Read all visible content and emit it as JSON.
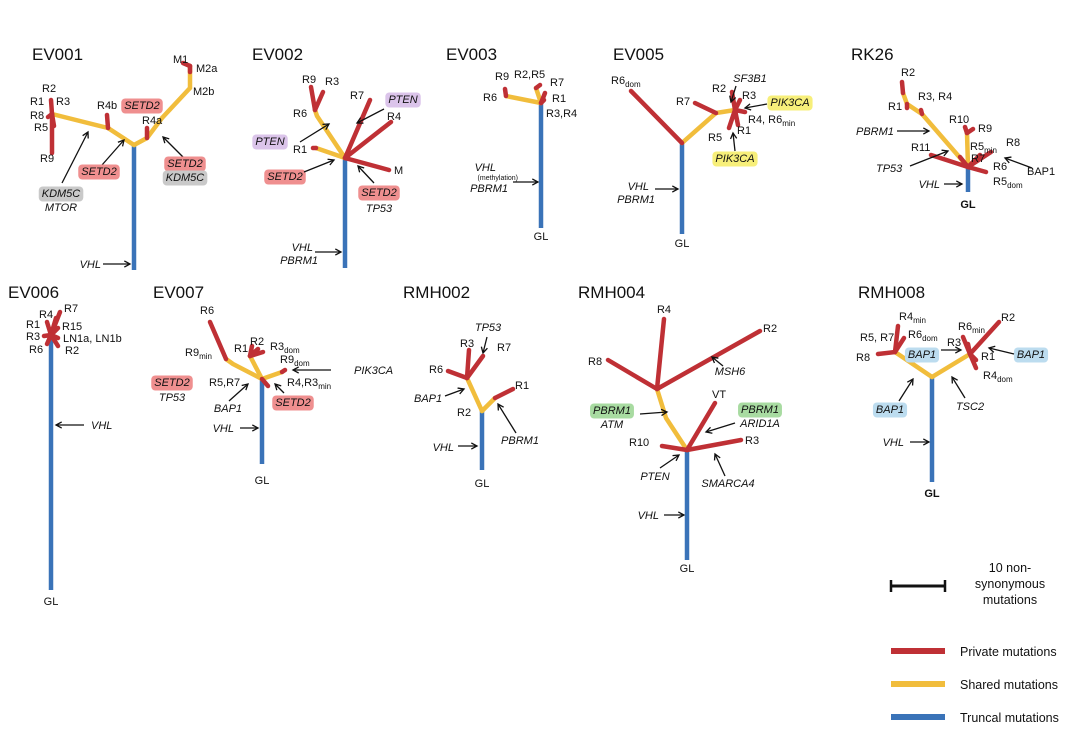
{
  "legend": {
    "scale_label_lines": [
      "10 non-",
      "synonymous",
      "mutations"
    ],
    "items": [
      {
        "label": "Private mutations",
        "color": "#bf3035"
      },
      {
        "label": "Shared mutations",
        "color": "#f1bd3c"
      },
      {
        "label": "Truncal mutations",
        "color": "#3a73b8"
      }
    ]
  },
  "tumors": [
    {
      "id": "EV001",
      "labels": [
        "R2",
        "R1",
        "R3",
        "R8",
        "R5",
        "R9",
        "R4b",
        "R4a",
        "M1",
        "M2a",
        "M2b"
      ],
      "genes": [
        "KDM5C",
        "MTOR",
        "SETD2",
        "SETD2",
        "SETD2",
        "KDM5C",
        "VHL"
      ]
    },
    {
      "id": "EV002",
      "labels": [
        "R9",
        "R3",
        "R6",
        "R7",
        "R4",
        "R1",
        "M"
      ],
      "genes": [
        "PTEN",
        "PTEN",
        "SETD2",
        "SETD2",
        "TP53",
        "VHL",
        "PBRM1"
      ]
    },
    {
      "id": "EV003",
      "labels": [
        "R9",
        "R2,R5",
        "R7",
        "R6",
        "R1",
        "R3,R4",
        "GL"
      ],
      "genes": [
        "VHL",
        "PBRM1"
      ],
      "notes": [
        "(methylation)"
      ]
    },
    {
      "id": "EV005",
      "labels": [
        "R6dom",
        "R7",
        "R2",
        "R3",
        "R4, R6min",
        "R5",
        "R1",
        "GL"
      ],
      "genes": [
        "SF3B1",
        "PIK3CA",
        "PIK3CA",
        "VHL",
        "PBRM1"
      ]
    },
    {
      "id": "RK26",
      "labels": [
        "R2",
        "R1",
        "R3, R4",
        "R10",
        "R9",
        "R5min",
        "R8",
        "R11",
        "R7",
        "R6",
        "BAP1",
        "R5dom",
        "GL"
      ],
      "genes": [
        "PBRM1",
        "TP53",
        "VHL"
      ]
    },
    {
      "id": "EV006",
      "labels": [
        "R7",
        "R4",
        "R1",
        "R15",
        "R3",
        "LN1a, LN1b",
        "R6",
        "R2",
        "GL"
      ],
      "genes": [
        "VHL"
      ]
    },
    {
      "id": "EV007",
      "labels": [
        "R6",
        "R9min",
        "R1",
        "R2",
        "R3dom",
        "R9dom",
        "R5,R7",
        "R4,R3min",
        "GL"
      ],
      "genes": [
        "PIK3CA",
        "SETD2",
        "TP53",
        "BAP1",
        "SETD2",
        "VHL"
      ]
    },
    {
      "id": "RMH002",
      "labels": [
        "R3",
        "R7",
        "R6",
        "R1",
        "R2",
        "GL"
      ],
      "genes": [
        "TP53",
        "BAP1",
        "PBRM1",
        "VHL"
      ]
    },
    {
      "id": "RMH004",
      "labels": [
        "R4",
        "R2",
        "R8",
        "VT",
        "R10",
        "R3",
        "GL"
      ],
      "genes": [
        "MSH6",
        "PBRM1",
        "ATM",
        "PBRM1",
        "ARID1A",
        "PTEN",
        "SMARCA4",
        "VHL"
      ]
    },
    {
      "id": "RMH008",
      "labels": [
        "R4min",
        "R5, R7",
        "R6dom",
        "R6min",
        "R2",
        "R3",
        "R8",
        "R1",
        "R4dom",
        "GL"
      ],
      "genes": [
        "BAP1",
        "BAP1",
        "BAP1",
        "TSC2",
        "VHL"
      ]
    }
  ]
}
